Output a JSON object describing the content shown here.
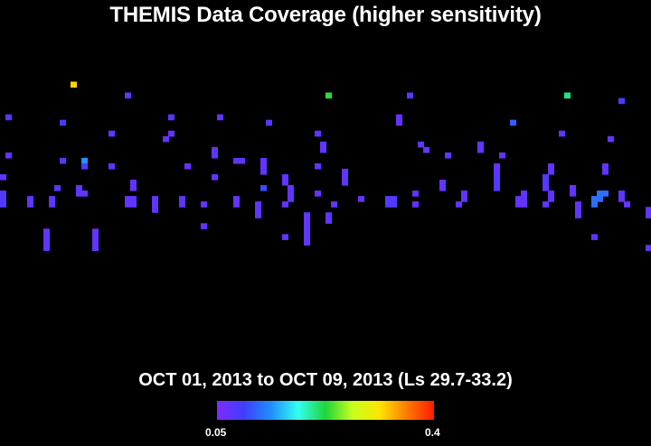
{
  "title": "THEMIS Data Coverage (higher sensitivity)",
  "subtitle": "OCT 01, 2013 to OCT 09, 2013 (Ls 29.7-33.2)",
  "colorbar": {
    "min_label": "0.05",
    "max_label": "0.4",
    "min": 0.05,
    "max": 0.4,
    "colors": [
      "#7d2bff",
      "#3f3fff",
      "#1f8fff",
      "#33ffee",
      "#1fd43a",
      "#c8ff1f",
      "#ffe400",
      "#ff7a00",
      "#ff1a00"
    ]
  },
  "chart_data": {
    "type": "heatmap",
    "title": "THEMIS Data Coverage (higher sensitivity)",
    "subtitle": "OCT 01, 2013 to OCT 09, 2013 (Ls 29.7-33.2)",
    "value_range": [
      0.05,
      0.4
    ],
    "grid": {
      "columns": 120,
      "rows": 82
    },
    "cells": [
      [
        13,
        15,
        0.32
      ],
      [
        23,
        17,
        0.07
      ],
      [
        60,
        17,
        0.23
      ],
      [
        75,
        17,
        0.08
      ],
      [
        104,
        17,
        0.21
      ],
      [
        114,
        18,
        0.09
      ],
      [
        1,
        21,
        0.08
      ],
      [
        11,
        22,
        0.09
      ],
      [
        31,
        21,
        0.08
      ],
      [
        40,
        21,
        0.07
      ],
      [
        49,
        22,
        0.08
      ],
      [
        73,
        21,
        0.07
      ],
      [
        73,
        22,
        0.07
      ],
      [
        94,
        22,
        0.11
      ],
      [
        20,
        24,
        0.07
      ],
      [
        30,
        25,
        0.07
      ],
      [
        31,
        24,
        0.07
      ],
      [
        58,
        24,
        0.07
      ],
      [
        103,
        24,
        0.07
      ],
      [
        112,
        25,
        0.07
      ],
      [
        1,
        28,
        0.07
      ],
      [
        11,
        29,
        0.08
      ],
      [
        15,
        29,
        0.14
      ],
      [
        39,
        27,
        0.07
      ],
      [
        39,
        28,
        0.07
      ],
      [
        59,
        26,
        0.07
      ],
      [
        59,
        27,
        0.07
      ],
      [
        77,
        26,
        0.07
      ],
      [
        78,
        27,
        0.07
      ],
      [
        82,
        28,
        0.07
      ],
      [
        88,
        26,
        0.07
      ],
      [
        88,
        27,
        0.07
      ],
      [
        92,
        28,
        0.07
      ],
      [
        0,
        32,
        0.07
      ],
      [
        15,
        30,
        0.08
      ],
      [
        20,
        30,
        0.07
      ],
      [
        34,
        30,
        0.07
      ],
      [
        39,
        32,
        0.07
      ],
      [
        43,
        29,
        0.07
      ],
      [
        44,
        29,
        0.07
      ],
      [
        48,
        29,
        0.07
      ],
      [
        48,
        30,
        0.07
      ],
      [
        48,
        31,
        0.07
      ],
      [
        58,
        30,
        0.07
      ],
      [
        63,
        31,
        0.07
      ],
      [
        91,
        30,
        0.07
      ],
      [
        91,
        31,
        0.07
      ],
      [
        101,
        30,
        0.07
      ],
      [
        101,
        31,
        0.07
      ],
      [
        111,
        30,
        0.07
      ],
      [
        111,
        31,
        0.07
      ],
      [
        24,
        33,
        0.07
      ],
      [
        24,
        34,
        0.07
      ],
      [
        52,
        32,
        0.07
      ],
      [
        52,
        33,
        0.07
      ],
      [
        63,
        32,
        0.07
      ],
      [
        63,
        33,
        0.07
      ],
      [
        81,
        33,
        0.07
      ],
      [
        81,
        34,
        0.07
      ],
      [
        91,
        32,
        0.08
      ],
      [
        91,
        33,
        0.08
      ],
      [
        91,
        34,
        0.08
      ],
      [
        100,
        32,
        0.08
      ],
      [
        100,
        33,
        0.08
      ],
      [
        100,
        34,
        0.07
      ],
      [
        10,
        34,
        0.08
      ],
      [
        14,
        34,
        0.07
      ],
      [
        14,
        35,
        0.07
      ],
      [
        15,
        35,
        0.07
      ],
      [
        48,
        34,
        0.1
      ],
      [
        53,
        34,
        0.07
      ],
      [
        53,
        35,
        0.07
      ],
      [
        53,
        36,
        0.07
      ],
      [
        58,
        35,
        0.07
      ],
      [
        76,
        35,
        0.07
      ],
      [
        85,
        35,
        0.07
      ],
      [
        85,
        36,
        0.07
      ],
      [
        96,
        35,
        0.07
      ],
      [
        96,
        36,
        0.07
      ],
      [
        101,
        35,
        0.07
      ],
      [
        101,
        36,
        0.07
      ],
      [
        105,
        34,
        0.07
      ],
      [
        105,
        35,
        0.07
      ],
      [
        110,
        35,
        0.12
      ],
      [
        111,
        35,
        0.12
      ],
      [
        114,
        35,
        0.07
      ],
      [
        114,
        36,
        0.07
      ],
      [
        0,
        35,
        0.08
      ],
      [
        0,
        36,
        0.08
      ],
      [
        0,
        37,
        0.08
      ],
      [
        5,
        36,
        0.07
      ],
      [
        5,
        37,
        0.07
      ],
      [
        9,
        36,
        0.07
      ],
      [
        9,
        37,
        0.07
      ],
      [
        23,
        36,
        0.07
      ],
      [
        23,
        37,
        0.07
      ],
      [
        24,
        36,
        0.07
      ],
      [
        24,
        37,
        0.07
      ],
      [
        28,
        36,
        0.07
      ],
      [
        28,
        37,
        0.07
      ],
      [
        33,
        36,
        0.07
      ],
      [
        33,
        37,
        0.07
      ],
      [
        37,
        37,
        0.07
      ],
      [
        43,
        36,
        0.07
      ],
      [
        43,
        37,
        0.07
      ],
      [
        47,
        37,
        0.07
      ],
      [
        52,
        37,
        0.07
      ],
      [
        61,
        37,
        0.07
      ],
      [
        66,
        36,
        0.07
      ],
      [
        71,
        36,
        0.08
      ],
      [
        71,
        37,
        0.08
      ],
      [
        72,
        36,
        0.08
      ],
      [
        72,
        37,
        0.08
      ],
      [
        76,
        37,
        0.07
      ],
      [
        84,
        37,
        0.07
      ],
      [
        95,
        36,
        0.07
      ],
      [
        95,
        37,
        0.07
      ],
      [
        96,
        37,
        0.07
      ],
      [
        100,
        37,
        0.07
      ],
      [
        106,
        37,
        0.07
      ],
      [
        109,
        36,
        0.12
      ],
      [
        109,
        37,
        0.12
      ],
      [
        110,
        36,
        0.12
      ],
      [
        115,
        37,
        0.07
      ],
      [
        28,
        38,
        0.07
      ],
      [
        47,
        38,
        0.07
      ],
      [
        47,
        39,
        0.07
      ],
      [
        56,
        39,
        0.07
      ],
      [
        56,
        40,
        0.07
      ],
      [
        60,
        39,
        0.07
      ],
      [
        60,
        40,
        0.07
      ],
      [
        106,
        38,
        0.07
      ],
      [
        106,
        39,
        0.07
      ],
      [
        119,
        38,
        0.07
      ],
      [
        119,
        39,
        0.07
      ],
      [
        37,
        41,
        0.07
      ],
      [
        56,
        41,
        0.07
      ],
      [
        56,
        42,
        0.07
      ],
      [
        8,
        42,
        0.07
      ],
      [
        8,
        43,
        0.07
      ],
      [
        17,
        42,
        0.07
      ],
      [
        17,
        43,
        0.07
      ],
      [
        8,
        44,
        0.07
      ],
      [
        8,
        45,
        0.07
      ],
      [
        17,
        44,
        0.07
      ],
      [
        17,
        45,
        0.07
      ],
      [
        52,
        43,
        0.07
      ],
      [
        56,
        43,
        0.07
      ],
      [
        56,
        44,
        0.07
      ],
      [
        109,
        43,
        0.07
      ],
      [
        119,
        45,
        0.07
      ]
    ]
  }
}
